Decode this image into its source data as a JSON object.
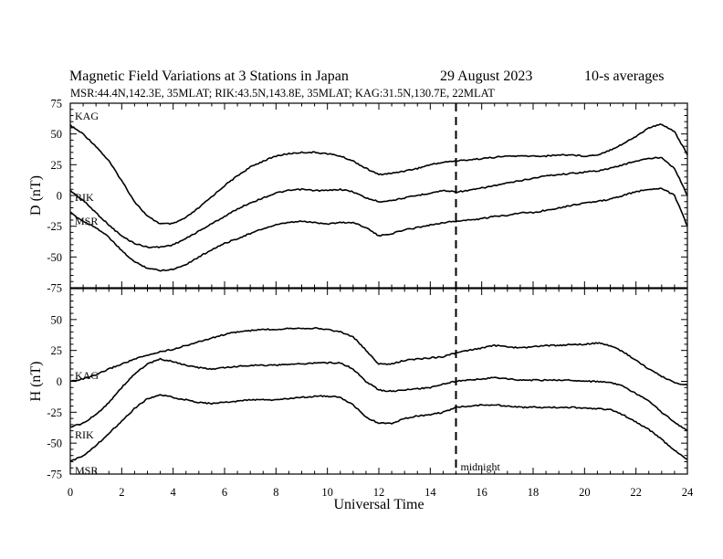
{
  "header": {
    "title": "Magnetic Field Variations at 3 Stations in Japan",
    "date": "29  August  2023",
    "averaging": "10-s averages",
    "stations": "MSR:44.4N,142.3E, 35MLAT;  RIK:43.5N,143.8E, 35MLAT;  KAG:31.5N,130.7E, 22MLAT"
  },
  "chart_data": [
    {
      "type": "line",
      "panel": "D",
      "ylabel": "D (nT)",
      "ylim": [
        -75,
        75
      ],
      "yticks": [
        -75,
        -50,
        -25,
        0,
        25,
        50,
        75
      ],
      "xlim": [
        0,
        24
      ],
      "grid": false,
      "x": [
        0,
        0.5,
        1,
        1.5,
        2,
        2.5,
        3,
        3.5,
        4,
        4.5,
        5,
        5.5,
        6,
        6.5,
        7,
        7.5,
        8,
        8.5,
        9,
        9.5,
        10,
        10.5,
        11,
        11.5,
        12,
        12.5,
        13,
        13.5,
        14,
        14.5,
        15,
        15.5,
        16,
        16.5,
        17,
        17.5,
        18,
        18.5,
        19,
        19.5,
        20,
        20.5,
        21,
        21.5,
        22,
        22.5,
        23,
        23.5,
        24
      ],
      "series": [
        {
          "name": "KAG",
          "values": [
            57,
            50,
            40,
            28,
            12,
            -5,
            -17,
            -23,
            -23,
            -18,
            -10,
            -1,
            8,
            16,
            23,
            28,
            32,
            34,
            35,
            35,
            34,
            32,
            28,
            22,
            17,
            18,
            20,
            22,
            25,
            27,
            28,
            29,
            30,
            31,
            32,
            32,
            32,
            32,
            33,
            33,
            32,
            33,
            37,
            42,
            48,
            55,
            58,
            52,
            33
          ]
        },
        {
          "name": "RIK",
          "values": [
            4,
            -4,
            -14,
            -24,
            -33,
            -39,
            -42,
            -42,
            -40,
            -35,
            -29,
            -23,
            -17,
            -11,
            -6,
            -2,
            2,
            4,
            5,
            4,
            4,
            5,
            3,
            -2,
            -5,
            -4,
            -2,
            0,
            2,
            4,
            3,
            4,
            6,
            8,
            10,
            12,
            14,
            16,
            17,
            18,
            19,
            20,
            22,
            25,
            28,
            30,
            31,
            22,
            0
          ]
        },
        {
          "name": "MSR",
          "values": [
            -14,
            -21,
            -26,
            -34,
            -45,
            -54,
            -59,
            -61,
            -60,
            -56,
            -50,
            -44,
            -39,
            -35,
            -31,
            -27,
            -24,
            -22,
            -21,
            -22,
            -23,
            -22,
            -22,
            -26,
            -33,
            -31,
            -28,
            -26,
            -24,
            -22,
            -21,
            -20,
            -19,
            -17,
            -16,
            -14,
            -14,
            -12,
            -10,
            -8,
            -6,
            -5,
            -3,
            0,
            3,
            5,
            6,
            0,
            -25
          ]
        }
      ]
    },
    {
      "type": "line",
      "panel": "H",
      "ylabel": "H (nT)",
      "xlabel": "Universal Time",
      "ylim": [
        -75,
        75
      ],
      "yticks": [
        -75,
        -50,
        -25,
        0,
        25,
        50
      ],
      "xlim": [
        0,
        24
      ],
      "xticks": [
        0,
        2,
        4,
        6,
        8,
        10,
        12,
        14,
        16,
        18,
        20,
        22,
        24
      ],
      "grid": false,
      "x": [
        0,
        0.5,
        1,
        1.5,
        2,
        2.5,
        3,
        3.5,
        4,
        4.5,
        5,
        5.5,
        6,
        6.5,
        7,
        7.5,
        8,
        8.5,
        9,
        9.5,
        10,
        10.5,
        11,
        11.5,
        12,
        12.5,
        13,
        13.5,
        14,
        14.5,
        15,
        15.5,
        16,
        16.5,
        17,
        17.5,
        18,
        18.5,
        19,
        19.5,
        20,
        20.5,
        21,
        21.5,
        22,
        22.5,
        23,
        23.5,
        24
      ],
      "series": [
        {
          "name": "KAG",
          "values": [
            0,
            2,
            5,
            10,
            14,
            18,
            21,
            24,
            26,
            29,
            32,
            35,
            38,
            40,
            41,
            42,
            42,
            43,
            43,
            43,
            42,
            40,
            36,
            25,
            14,
            14,
            17,
            18,
            19,
            20,
            23,
            25,
            27,
            29,
            28,
            27,
            28,
            29,
            29,
            30,
            30,
            31,
            29,
            24,
            17,
            10,
            4,
            -1,
            -3
          ]
        },
        {
          "name": "RIK",
          "values": [
            -37,
            -34,
            -27,
            -17,
            -5,
            6,
            14,
            18,
            16,
            13,
            11,
            10,
            11,
            12,
            13,
            13,
            13,
            14,
            14,
            15,
            15,
            15,
            10,
            0,
            -7,
            -8,
            -7,
            -6,
            -5,
            -2,
            0,
            1,
            2,
            3,
            2,
            1,
            1,
            1,
            1,
            1,
            0,
            0,
            -1,
            -4,
            -10,
            -16,
            -25,
            -33,
            -40
          ]
        },
        {
          "name": "MSR",
          "values": [
            -65,
            -60,
            -52,
            -42,
            -32,
            -22,
            -14,
            -11,
            -13,
            -15,
            -17,
            -18,
            -17,
            -16,
            -15,
            -15,
            -15,
            -14,
            -13,
            -12,
            -12,
            -13,
            -19,
            -29,
            -34,
            -34,
            -30,
            -28,
            -27,
            -25,
            -21,
            -20,
            -19,
            -19,
            -20,
            -21,
            -21,
            -21,
            -21,
            -21,
            -22,
            -22,
            -23,
            -27,
            -33,
            -39,
            -47,
            -56,
            -63
          ]
        }
      ]
    }
  ],
  "annotations": {
    "midnight_ut": 15,
    "midnight_label": "midnight"
  }
}
